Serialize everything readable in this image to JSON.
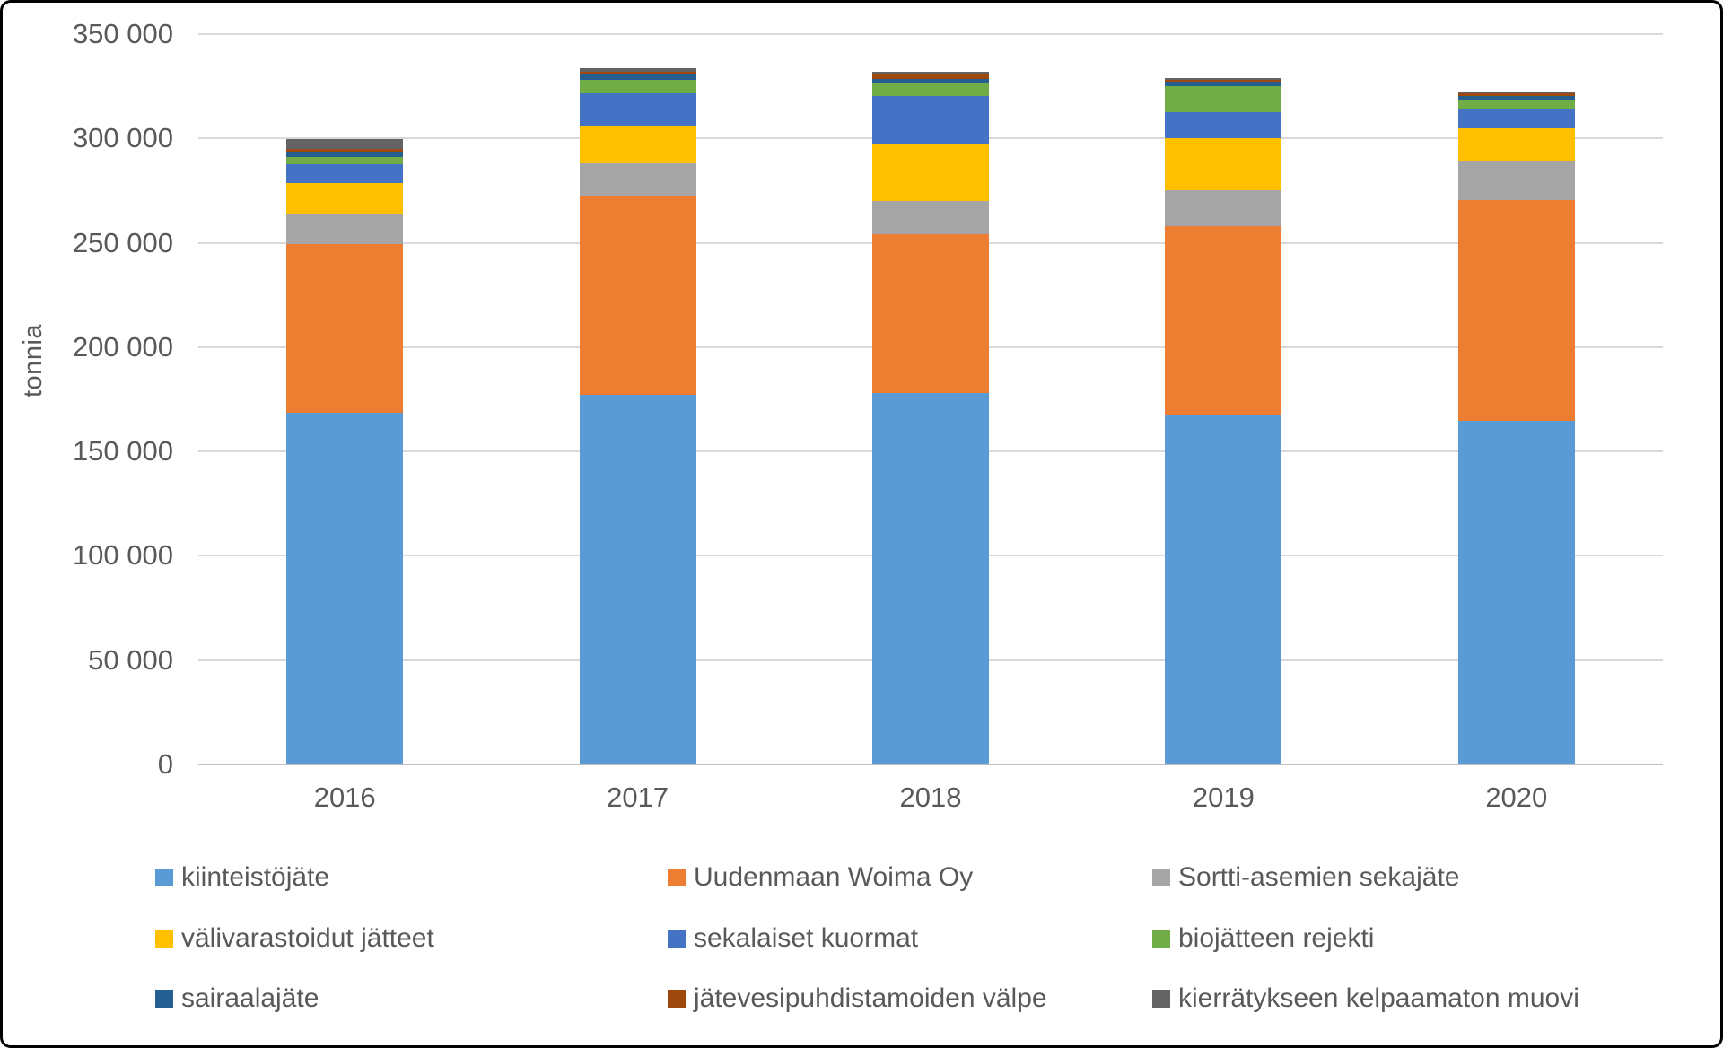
{
  "chart_data": {
    "type": "bar",
    "stacked": true,
    "title": "",
    "xlabel": "",
    "ylabel": "tonnia",
    "categories": [
      "2016",
      "2017",
      "2018",
      "2019",
      "2020"
    ],
    "series": [
      {
        "name": "kiinteistöjäte",
        "color": "#5B9BD5",
        "values": [
          168500,
          177000,
          178000,
          167500,
          164500
        ]
      },
      {
        "name": "Uudenmaan Woima Oy",
        "color": "#ED7D31",
        "values": [
          81000,
          95000,
          76000,
          90500,
          106000
        ]
      },
      {
        "name": "Sortti-asemien sekajäte",
        "color": "#A5A5A5",
        "values": [
          14500,
          16000,
          16000,
          17000,
          19000
        ]
      },
      {
        "name": "välivarastoidut jätteet",
        "color": "#FFC000",
        "values": [
          14500,
          18000,
          27500,
          25000,
          15500
        ]
      },
      {
        "name": "sekalaiset kuormat",
        "color": "#4472C4",
        "values": [
          9000,
          15500,
          23000,
          12500,
          9000
        ]
      },
      {
        "name": "biojätteen rejekti",
        "color": "#70AD47",
        "values": [
          3500,
          6500,
          6000,
          12500,
          4000
        ]
      },
      {
        "name": "sairaalajäte",
        "color": "#255E91",
        "values": [
          2500,
          2500,
          2000,
          2000,
          2500
        ]
      },
      {
        "name": "jätevesipuhdistamoiden välpe",
        "color": "#9E480E",
        "values": [
          1500,
          1500,
          2000,
          1000,
          1000
        ]
      },
      {
        "name": "kierrätykseen kelpaamaton muovi",
        "color": "#636363",
        "values": [
          4500,
          1500,
          1500,
          1000,
          500
        ]
      }
    ],
    "ylim": [
      0,
      350000
    ],
    "yticks": [
      {
        "value": 0,
        "label": "0"
      },
      {
        "value": 50000,
        "label": "50 000"
      },
      {
        "value": 100000,
        "label": "100 000"
      },
      {
        "value": 150000,
        "label": "150 000"
      },
      {
        "value": 200000,
        "label": "200 000"
      },
      {
        "value": 250000,
        "label": "250 000"
      },
      {
        "value": 300000,
        "label": "300 000"
      },
      {
        "value": 350000,
        "label": "350 000"
      }
    ],
    "grid": true,
    "legend_position": "bottom"
  },
  "colors": {
    "gridline": "#D9D9D9",
    "baseline": "#BFBFBF",
    "axis_text": "#595959",
    "frame_border": "#000000",
    "background": "#FFFFFF"
  }
}
